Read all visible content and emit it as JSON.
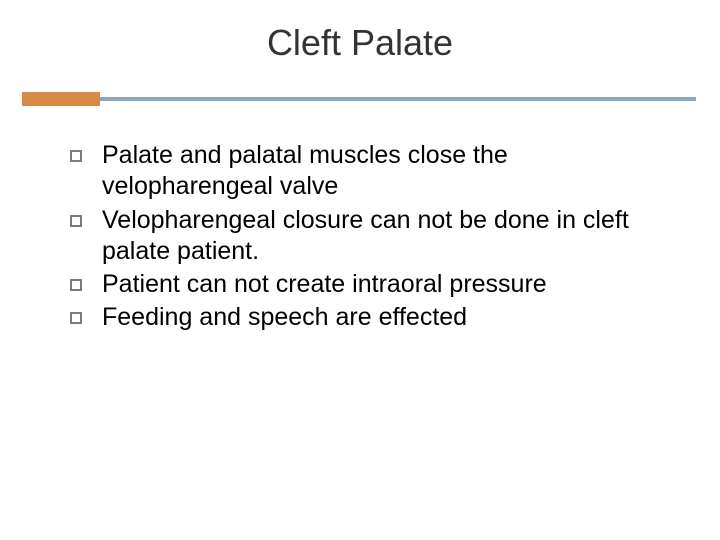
{
  "slide": {
    "title": "Cleft Palate",
    "title_color": "#333333",
    "title_fontsize": 36,
    "divider": {
      "accent_color": "#d68b47",
      "line_color": "#8aa7c2",
      "accent_width": 78,
      "accent_height": 14,
      "line_height": 4
    },
    "bullets": [
      {
        "text": "Palate and palatal muscles close the velopharengeal valve"
      },
      {
        "text": "Velopharengeal closure can not be done in cleft palate patient."
      },
      {
        "text": "Patient can not create intraoral pressure"
      },
      {
        "text": " Feeding and speech are effected"
      }
    ],
    "bullet_marker_border_color": "#7a7a7a",
    "body_fontsize": 25,
    "body_color": "#000000",
    "background_color": "#ffffff"
  }
}
